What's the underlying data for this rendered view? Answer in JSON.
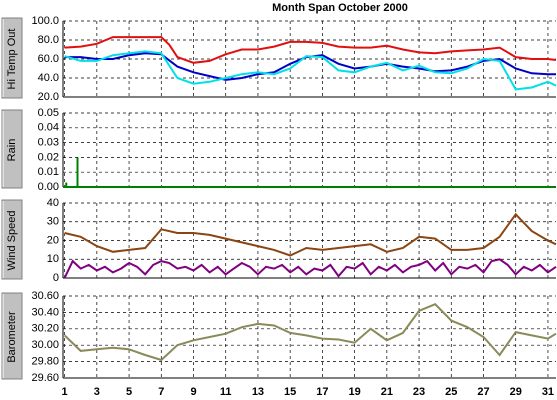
{
  "title": "Month Span   October 2000",
  "chart_data": [
    {
      "type": "line",
      "ylabel": "Hi Temp Out",
      "xlim": [
        0.9,
        31.5
      ],
      "xticks": [
        1,
        3,
        5,
        7,
        9,
        11,
        13,
        15,
        17,
        19,
        21,
        23,
        25,
        27,
        29,
        31
      ],
      "ylim": [
        20,
        100
      ],
      "yticks": [
        {
          "value": 20,
          "label": "20.0"
        },
        {
          "value": 40,
          "label": "40.0"
        },
        {
          "value": 60,
          "label": "60.0"
        },
        {
          "value": 80,
          "label": "80.0"
        },
        {
          "value": 100,
          "label": "100.0"
        }
      ],
      "grid": true,
      "series": [
        {
          "color": "#e01010",
          "x": [
            1,
            2,
            3,
            4,
            5,
            6,
            7,
            7.5,
            8,
            9,
            10,
            11,
            12,
            13,
            14,
            15,
            16,
            17,
            18,
            19,
            20,
            21,
            22,
            23,
            24,
            25,
            26,
            27,
            28,
            29,
            30,
            31,
            31.5
          ],
          "values": [
            72,
            73,
            76,
            83,
            83,
            83,
            83,
            75,
            62,
            56,
            58,
            65,
            70,
            70,
            73,
            78,
            78,
            77,
            73,
            72,
            72,
            74,
            70,
            67,
            66,
            68,
            69,
            70,
            72,
            62,
            60,
            60,
            59
          ]
        },
        {
          "color": "#0000c8",
          "x": [
            1,
            2,
            3,
            4,
            5,
            6,
            7,
            8,
            9,
            10,
            11,
            12,
            13,
            14,
            15,
            16,
            17,
            18,
            19,
            20,
            21,
            22,
            23,
            24,
            25,
            26,
            27,
            28,
            29,
            30,
            31,
            31.5
          ],
          "values": [
            62,
            62,
            60,
            60,
            64,
            66,
            65,
            52,
            46,
            42,
            38,
            40,
            44,
            46,
            55,
            62,
            64,
            55,
            50,
            52,
            55,
            52,
            50,
            47,
            48,
            52,
            58,
            60,
            50,
            45,
            44,
            44
          ]
        },
        {
          "color": "#00e0e8",
          "x": [
            1,
            2,
            3,
            4,
            5,
            6,
            7,
            8,
            9,
            10,
            11,
            12,
            13,
            14,
            15,
            16,
            17,
            18,
            19,
            20,
            21,
            22,
            23,
            24,
            25,
            26,
            27,
            28,
            29,
            30,
            31,
            31.5
          ],
          "values": [
            63,
            58,
            58,
            64,
            66,
            68,
            66,
            40,
            34,
            36,
            40,
            44,
            46,
            44,
            50,
            63,
            62,
            48,
            46,
            52,
            56,
            48,
            53,
            46,
            45,
            50,
            60,
            58,
            28,
            30,
            36,
            32
          ]
        }
      ]
    },
    {
      "type": "bar",
      "ylabel": "Rain",
      "xlim": [
        0.9,
        31.5
      ],
      "xticks": [
        1,
        3,
        5,
        7,
        9,
        11,
        13,
        15,
        17,
        19,
        21,
        23,
        25,
        27,
        29,
        31
      ],
      "ylim": [
        0,
        0.05
      ],
      "yticks": [
        {
          "value": 0,
          "label": "0.00"
        },
        0.01,
        0.02,
        0.03,
        0.04,
        0.05
      ],
      "grid": true,
      "series": [
        {
          "color": "#008000",
          "x": [
            1.1,
            1.8
          ],
          "values": [
            0.003,
            0.02
          ]
        }
      ]
    },
    {
      "type": "line",
      "ylabel": "Wind Speed",
      "xlim": [
        0.9,
        31.5
      ],
      "xticks": [
        1,
        3,
        5,
        7,
        9,
        11,
        13,
        15,
        17,
        19,
        21,
        23,
        25,
        27,
        29,
        31
      ],
      "ylim": [
        0,
        40
      ],
      "yticks": [
        0,
        10,
        20,
        30,
        40
      ],
      "grid": true,
      "series": [
        {
          "color": "#8b4513",
          "x": [
            1,
            2,
            3,
            4,
            5,
            6,
            7,
            8,
            9,
            10,
            11,
            12,
            13,
            14,
            15,
            16,
            17,
            18,
            19,
            20,
            21,
            22,
            23,
            24,
            25,
            26,
            27,
            28,
            29,
            30,
            31,
            31.5
          ],
          "values": [
            24,
            22,
            17,
            14,
            15,
            16,
            26,
            24,
            24,
            23,
            21,
            19,
            17,
            15,
            12,
            16,
            15,
            16,
            17,
            18,
            14,
            16,
            22,
            21,
            15,
            15,
            16,
            22,
            34,
            25,
            20,
            18
          ]
        },
        {
          "color": "#800080",
          "x": [
            1,
            1.5,
            2,
            2.5,
            3,
            3.5,
            4,
            4.5,
            5,
            5.5,
            6,
            6.5,
            7,
            7.5,
            8,
            8.5,
            9,
            9.5,
            10,
            10.5,
            11,
            11.5,
            12,
            12.5,
            13,
            13.5,
            14,
            14.5,
            15,
            15.5,
            16,
            16.5,
            17,
            17.5,
            18,
            18.5,
            19,
            19.5,
            20,
            20.5,
            21,
            21.5,
            22,
            22.5,
            23,
            23.5,
            24,
            24.5,
            25,
            25.5,
            26,
            26.5,
            27,
            27.5,
            28,
            28.5,
            29,
            29.5,
            30,
            30.5,
            31,
            31.5
          ],
          "values": [
            0,
            9,
            5,
            7,
            4,
            6,
            3,
            5,
            8,
            6,
            2,
            7,
            9,
            8,
            5,
            6,
            4,
            7,
            3,
            6,
            2,
            5,
            8,
            6,
            2,
            6,
            5,
            7,
            3,
            6,
            2,
            5,
            4,
            7,
            1,
            6,
            5,
            8,
            2,
            6,
            4,
            7,
            3,
            6,
            7,
            9,
            4,
            8,
            2,
            6,
            5,
            7,
            3,
            9,
            10,
            7,
            2,
            6,
            4,
            7,
            3,
            6
          ]
        }
      ]
    },
    {
      "type": "line",
      "ylabel": "Barometer",
      "xlim": [
        0.9,
        31.5
      ],
      "xticks": [
        1,
        3,
        5,
        7,
        9,
        11,
        13,
        15,
        17,
        19,
        21,
        23,
        25,
        27,
        29,
        31
      ],
      "ylim": [
        29.6,
        30.6
      ],
      "yticks": [
        {
          "value": 29.6,
          "label": "29.60"
        },
        {
          "value": 29.8,
          "label": "29.80"
        },
        {
          "value": 30.0,
          "label": "30.00"
        },
        {
          "value": 30.2,
          "label": "30.20"
        },
        {
          "value": 30.4,
          "label": "30.40"
        },
        {
          "value": 30.6,
          "label": "30.60"
        }
      ],
      "grid": true,
      "show_xtick_labels": true,
      "series": [
        {
          "color": "#8a8a5a",
          "x": [
            1,
            2,
            3,
            4,
            5,
            6,
            7,
            8,
            9,
            10,
            11,
            12,
            13,
            14,
            15,
            16,
            17,
            18,
            19,
            20,
            21,
            22,
            23,
            24,
            25,
            26,
            27,
            28,
            29,
            30,
            31,
            31.5
          ],
          "values": [
            30.12,
            29.93,
            29.95,
            29.97,
            29.95,
            29.88,
            29.82,
            30.0,
            30.06,
            30.1,
            30.14,
            30.22,
            30.26,
            30.24,
            30.15,
            30.12,
            30.08,
            30.07,
            30.03,
            30.2,
            30.06,
            30.15,
            30.42,
            30.5,
            30.3,
            30.22,
            30.1,
            29.88,
            30.16,
            30.12,
            30.08,
            30.14
          ]
        }
      ]
    }
  ]
}
